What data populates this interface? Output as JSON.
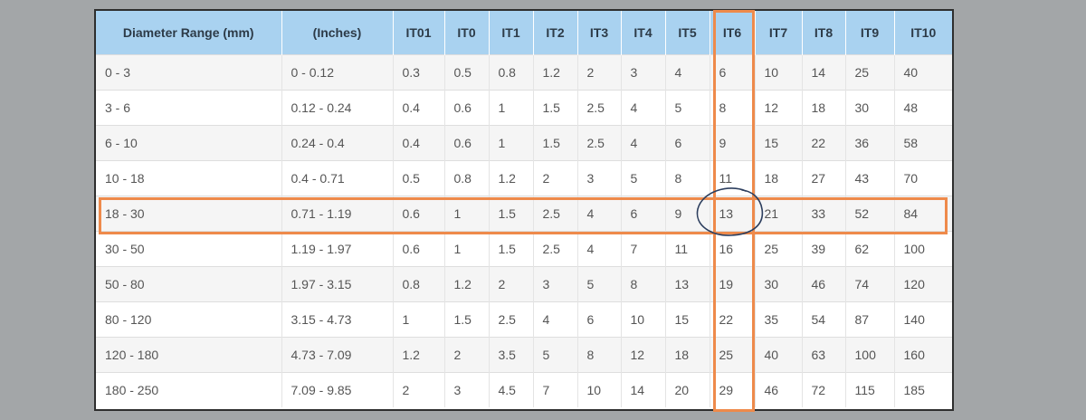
{
  "table": {
    "headers": [
      "Diameter Range (mm)",
      "(Inches)",
      "IT01",
      "IT0",
      "IT1",
      "IT2",
      "IT3",
      "IT4",
      "IT5",
      "IT6",
      "IT7",
      "IT8",
      "IT9",
      "IT10"
    ],
    "rows": [
      [
        "0 - 3",
        "0 - 0.12",
        "0.3",
        "0.5",
        "0.8",
        "1.2",
        "2",
        "3",
        "4",
        "6",
        "10",
        "14",
        "25",
        "40"
      ],
      [
        "3 - 6",
        "0.12 - 0.24",
        "0.4",
        "0.6",
        "1",
        "1.5",
        "2.5",
        "4",
        "5",
        "8",
        "12",
        "18",
        "30",
        "48"
      ],
      [
        "6 - 10",
        "0.24 - 0.4",
        "0.4",
        "0.6",
        "1",
        "1.5",
        "2.5",
        "4",
        "6",
        "9",
        "15",
        "22",
        "36",
        "58"
      ],
      [
        "10 - 18",
        "0.4 - 0.71",
        "0.5",
        "0.8",
        "1.2",
        "2",
        "3",
        "5",
        "8",
        "11",
        "18",
        "27",
        "43",
        "70"
      ],
      [
        "18 - 30",
        "0.71 - 1.19",
        "0.6",
        "1",
        "1.5",
        "2.5",
        "4",
        "6",
        "9",
        "13",
        "21",
        "33",
        "52",
        "84"
      ],
      [
        "30 - 50",
        "1.19 - 1.97",
        "0.6",
        "1",
        "1.5",
        "2.5",
        "4",
        "7",
        "11",
        "16",
        "25",
        "39",
        "62",
        "100"
      ],
      [
        "50 - 80",
        "1.97 - 3.15",
        "0.8",
        "1.2",
        "2",
        "3",
        "5",
        "8",
        "13",
        "19",
        "30",
        "46",
        "74",
        "120"
      ],
      [
        "80 - 120",
        "3.15 - 4.73",
        "1",
        "1.5",
        "2.5",
        "4",
        "6",
        "10",
        "15",
        "22",
        "35",
        "54",
        "87",
        "140"
      ],
      [
        "120 - 180",
        "4.73 - 7.09",
        "1.2",
        "2",
        "3.5",
        "5",
        "8",
        "12",
        "18",
        "25",
        "40",
        "63",
        "100",
        "160"
      ],
      [
        "180 - 250",
        "7.09 - 9.85",
        "2",
        "3",
        "4.5",
        "7",
        "10",
        "14",
        "20",
        "29",
        "46",
        "72",
        "115",
        "185"
      ]
    ]
  },
  "colors": {
    "header_bg": "#a9d2f0",
    "highlight": "#ee8a4b",
    "circle": "#2c3e5e",
    "page_bg": "#a3a6a8"
  }
}
